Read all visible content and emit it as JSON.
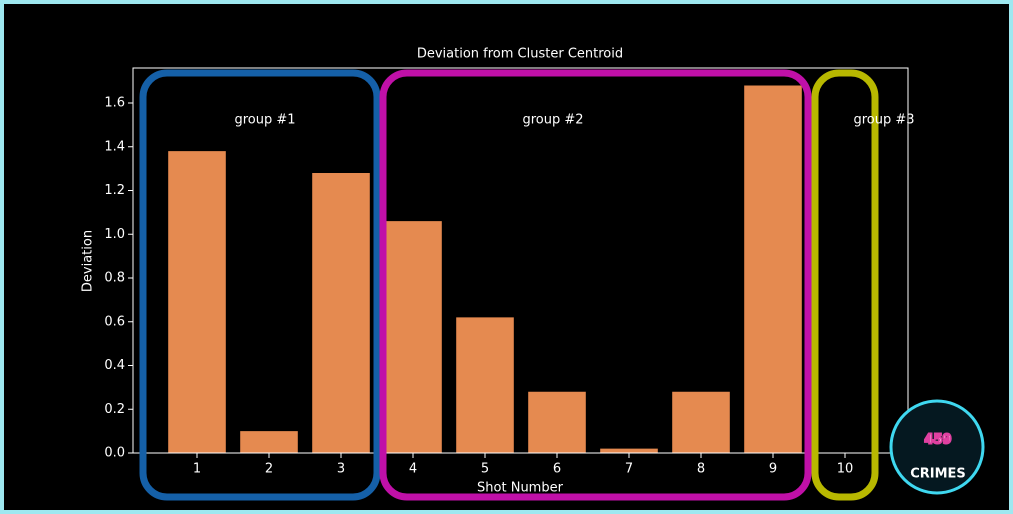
{
  "chart_data": {
    "type": "bar",
    "title": "Deviation from Cluster Centroid",
    "x_label": "Shot Number",
    "y_label": "Deviation",
    "categories": [
      "1",
      "2",
      "3",
      "4",
      "5",
      "6",
      "7",
      "8",
      "9",
      "10"
    ],
    "values": [
      1.38,
      0.1,
      1.28,
      1.06,
      0.62,
      0.28,
      0.02,
      0.28,
      1.68,
      0
    ],
    "color": "#e58a50",
    "ylim": [
      0,
      1.76
    ],
    "yticks": [
      {
        "value": 0,
        "label": "0.0"
      },
      0.2,
      0.4,
      0.6,
      0.8,
      {
        "value": 1,
        "label": "1.0"
      },
      1.2,
      1.4,
      1.6
    ],
    "grid": false,
    "annotations": [
      {
        "text": "group #1",
        "color": "#1560a8"
      },
      {
        "text": "group #2",
        "color": "#c010a8"
      },
      {
        "text": "group #3",
        "color": "#b8b800"
      }
    ],
    "logo": {
      "number": "459",
      "text": "CRIMES"
    }
  }
}
